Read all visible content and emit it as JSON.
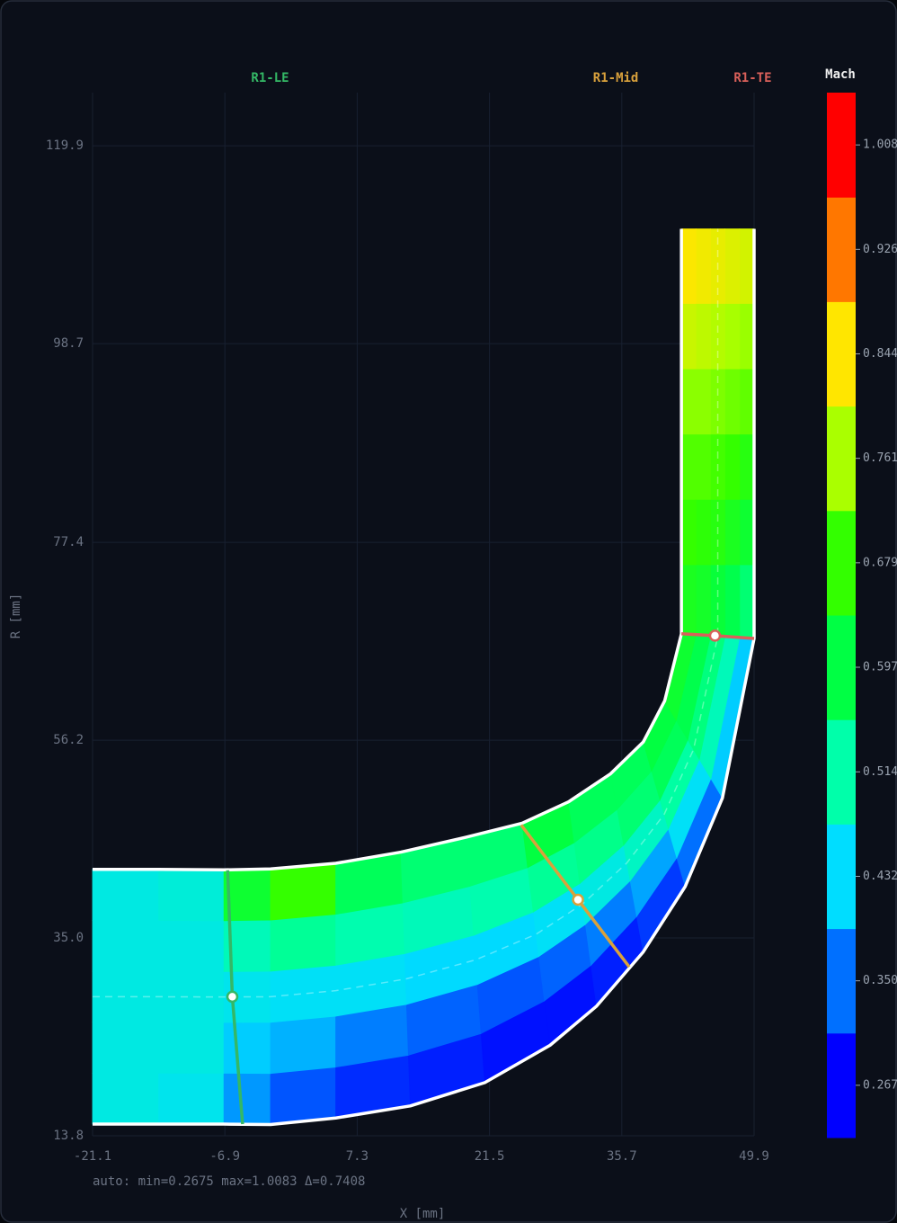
{
  "chart_data": {
    "type": "contour",
    "xlabel": "X [mm]",
    "ylabel": "R [mm]",
    "note": "auto: min=0.2675 max=1.0083 Δ=0.7408",
    "xlim": [
      -21.1,
      49.9
    ],
    "ylim": [
      13.8,
      125.6
    ],
    "xticks": [
      -21.1,
      -6.9,
      7.3,
      21.5,
      35.7,
      49.9
    ],
    "yticks": [
      13.8,
      {
        "value": 35,
        "label": "35.0"
      },
      56.2,
      77.4,
      98.7,
      119.9
    ],
    "grid": true,
    "hub": {
      "x": [
        -21.1,
        -14,
        -7,
        -2,
        5,
        13,
        21,
        28,
        33,
        38,
        42.5,
        46.5,
        49.9,
        49.9,
        49.9,
        49.9,
        49.9,
        49.9,
        49.9
      ],
      "r": [
        15.05,
        15.05,
        15.05,
        15.0,
        15.7,
        17.0,
        19.5,
        23.5,
        27.7,
        33.5,
        40.5,
        50,
        67.1,
        75,
        82,
        89,
        96,
        103,
        111
      ]
    },
    "shroud": {
      "x": [
        -21.1,
        -14,
        -7,
        -2,
        5,
        12,
        19,
        25,
        30,
        34.5,
        38,
        40.3,
        42.1,
        42.1,
        42.1,
        42.1,
        42.1,
        42.1,
        42.1
      ],
      "r": [
        42.35,
        42.35,
        42.3,
        42.4,
        43.0,
        44.2,
        45.8,
        47.3,
        49.6,
        52.6,
        56.0,
        60.4,
        67.6,
        75,
        82,
        89,
        96,
        103,
        111
      ]
    },
    "field": [
      [
        0.46,
        0.45,
        0.38,
        0.33,
        0.3,
        0.29,
        0.28,
        0.28,
        0.29,
        0.31,
        0.35,
        0.42,
        0.56,
        0.62,
        0.66,
        0.71,
        0.75,
        0.8
      ],
      [
        0.46,
        0.46,
        0.42,
        0.4,
        0.36,
        0.34,
        0.33,
        0.34,
        0.36,
        0.39,
        0.44,
        0.5,
        0.59,
        0.64,
        0.68,
        0.72,
        0.76,
        0.81
      ],
      [
        0.46,
        0.46,
        0.45,
        0.44,
        0.44,
        0.43,
        0.43,
        0.44,
        0.46,
        0.49,
        0.52,
        0.55,
        0.61,
        0.66,
        0.69,
        0.73,
        0.77,
        0.82
      ],
      [
        0.46,
        0.46,
        0.5,
        0.53,
        0.51,
        0.5,
        0.51,
        0.53,
        0.54,
        0.56,
        0.58,
        0.59,
        0.63,
        0.67,
        0.7,
        0.74,
        0.78,
        0.83
      ],
      [
        0.46,
        0.47,
        0.62,
        0.68,
        0.58,
        0.56,
        0.56,
        0.6,
        0.58,
        0.58,
        0.6,
        0.62,
        0.64,
        0.68,
        0.7,
        0.74,
        0.79,
        0.84
      ]
    ],
    "colorbar": {
      "title": "Mach",
      "clim": [
        0.2263,
        1.0495
      ],
      "colors": [
        "#0000ff",
        "#0070ff",
        "#00ddff",
        "#00ffaa",
        "#00ff44",
        "#33ff00",
        "#aaff00",
        "#ffe600",
        "#ff7700",
        "#ff0000"
      ],
      "ticks": [
        {
          "value": 0.2675,
          "label": "0.267"
        },
        {
          "value": 0.3498,
          "label": "0.350"
        },
        {
          "value": 0.4321,
          "label": "0.432"
        },
        {
          "value": 0.5144,
          "label": "0.514"
        },
        {
          "value": 0.5968,
          "label": "0.597"
        },
        {
          "value": 0.6791,
          "label": "0.679"
        },
        {
          "value": 0.7614,
          "label": "0.761"
        },
        {
          "value": 0.8437,
          "label": "0.844"
        },
        {
          "value": 0.926,
          "label": "0.926"
        },
        {
          "value": 1.0083,
          "label": "1.008"
        }
      ]
    },
    "stations": [
      {
        "name": "R1-LE",
        "color": "#34b866",
        "x": [
          -6.6,
          -6.1,
          -5.0
        ],
        "r": [
          42.25,
          28.7,
          15.05
        ]
      },
      {
        "name": "R1-Mid",
        "color": "#d9a13c",
        "x": [
          24.9,
          31.0,
          36.5
        ],
        "r": [
          47.1,
          39.1,
          31.9
        ]
      },
      {
        "name": "R1-TE",
        "color": "#d9605a",
        "x": [
          42.1,
          45.7,
          49.9
        ],
        "r": [
          67.6,
          67.4,
          67.1
        ]
      }
    ]
  }
}
